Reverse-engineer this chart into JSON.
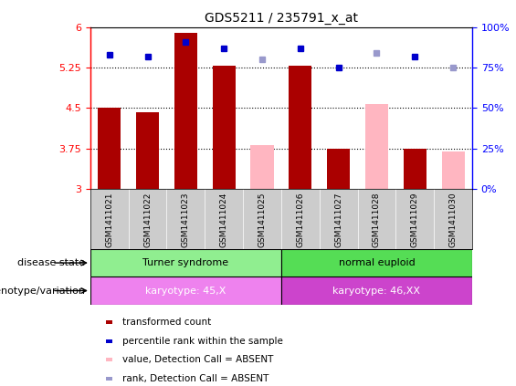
{
  "title": "GDS5211 / 235791_x_at",
  "samples": [
    "GSM1411021",
    "GSM1411022",
    "GSM1411023",
    "GSM1411024",
    "GSM1411025",
    "GSM1411026",
    "GSM1411027",
    "GSM1411028",
    "GSM1411029",
    "GSM1411030"
  ],
  "bar_values": [
    4.5,
    4.43,
    5.9,
    5.28,
    null,
    5.28,
    3.75,
    null,
    3.75,
    null
  ],
  "bar_absent_values": [
    null,
    null,
    null,
    null,
    3.82,
    null,
    null,
    4.58,
    null,
    3.7
  ],
  "rank_values": [
    83,
    82,
    91,
    87,
    null,
    87,
    75,
    null,
    82,
    null
  ],
  "rank_absent_values": [
    null,
    null,
    null,
    null,
    80,
    null,
    null,
    84,
    null,
    75
  ],
  "ylim_left": [
    3,
    6
  ],
  "ylim_right": [
    0,
    100
  ],
  "yticks_left": [
    3,
    3.75,
    4.5,
    5.25,
    6
  ],
  "yticks_right": [
    0,
    25,
    50,
    75,
    100
  ],
  "ytick_labels_left": [
    "3",
    "3.75",
    "4.5",
    "5.25",
    "6"
  ],
  "ytick_labels_right": [
    "0%",
    "25%",
    "50%",
    "75%",
    "100%"
  ],
  "dotted_lines": [
    3.75,
    4.5,
    5.25
  ],
  "bar_color": "#AA0000",
  "bar_absent_color": "#FFB6C1",
  "rank_color": "#0000CC",
  "rank_absent_color": "#9999CC",
  "disease_groups": [
    {
      "label": "Turner syndrome",
      "start": 0,
      "end": 4,
      "color": "#90EE90"
    },
    {
      "label": "normal euploid",
      "start": 5,
      "end": 9,
      "color": "#55DD55"
    }
  ],
  "genotype_groups": [
    {
      "label": "karyotype: 45,X",
      "start": 0,
      "end": 4,
      "color": "#EE82EE"
    },
    {
      "label": "karyotype: 46,XX",
      "start": 5,
      "end": 9,
      "color": "#CC44CC"
    }
  ],
  "disease_state_label": "disease state",
  "genotype_label": "genotype/variation",
  "legend_items": [
    {
      "label": "transformed count",
      "color": "#AA0000"
    },
    {
      "label": "percentile rank within the sample",
      "color": "#0000CC"
    },
    {
      "label": "value, Detection Call = ABSENT",
      "color": "#FFB6C1"
    },
    {
      "label": "rank, Detection Call = ABSENT",
      "color": "#9999CC"
    }
  ],
  "sample_bg_color": "#CCCCCC",
  "plot_bg_color": "#FFFFFF"
}
